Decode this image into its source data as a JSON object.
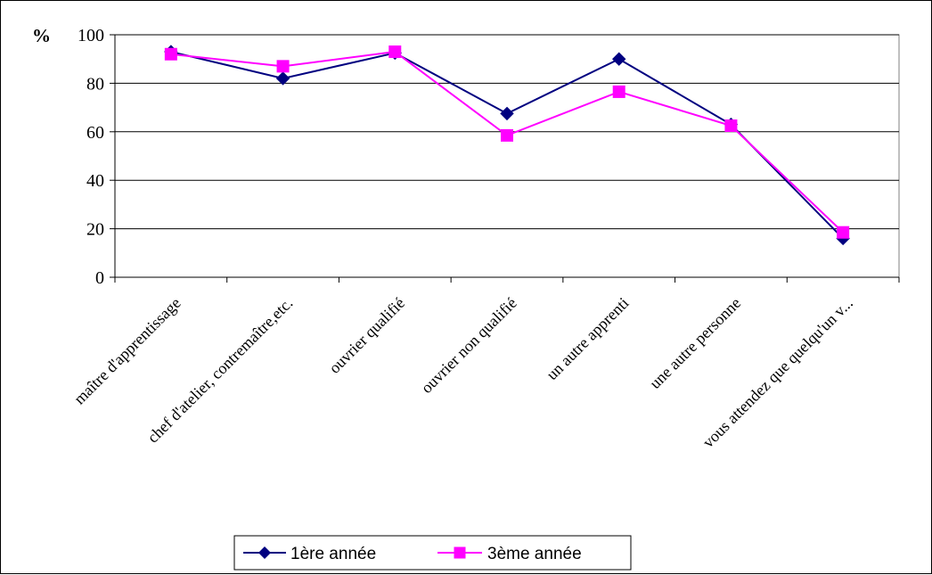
{
  "chart_data": {
    "type": "line",
    "ylabel": "%",
    "ylim": [
      0,
      100
    ],
    "yticks": [
      0,
      20,
      40,
      60,
      80,
      100
    ],
    "grid": true,
    "legend_position": "bottom",
    "categories": [
      "maître d'apprentissage",
      "chef d'atelier, contremaître,etc.",
      "ouvrier qualifié",
      "ouvrier non qualifié",
      "un autre apprenti",
      "une autre personne",
      "vous attendez que quelqu'un v..."
    ],
    "series": [
      {
        "name": "1ère année",
        "color": "#000080",
        "marker": "diamond",
        "values": [
          93,
          82,
          92.5,
          67.5,
          90,
          63,
          16
        ]
      },
      {
        "name": "3ème année",
        "color": "#FF00FF",
        "marker": "square",
        "values": [
          92,
          87,
          93,
          58.5,
          76.5,
          62.5,
          18.5
        ]
      }
    ]
  }
}
